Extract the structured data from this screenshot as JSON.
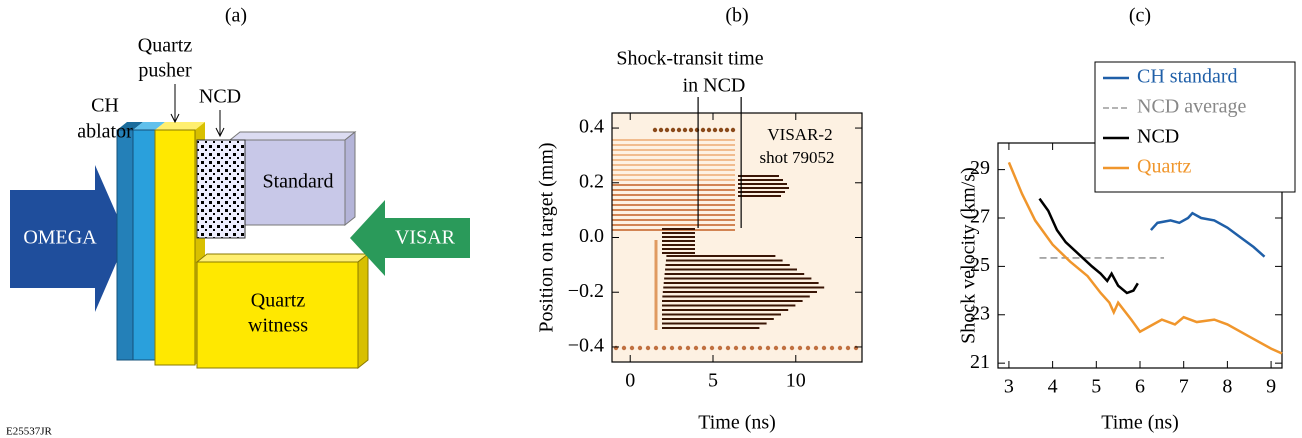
{
  "figure_id": "E25537JR",
  "diagram": {
    "panel_label": "(a)",
    "labels": {
      "ch_ablator": [
        "CH",
        "ablator"
      ],
      "quartz_pusher": [
        "Quartz",
        "pusher"
      ],
      "ncd": "NCD",
      "standard": "Standard",
      "omega": "OMEGA",
      "visar": "VISAR",
      "quartz_witness": [
        "Quartz",
        "witness"
      ]
    }
  },
  "chart_data": [
    {
      "type": "image",
      "panel_label": "(b)",
      "xlabel": "Time (ns)",
      "ylabel": "Position on target (mm)",
      "xlim": [
        -1.1,
        14
      ],
      "ylim": [
        -0.455,
        0.455
      ],
      "xticks": [
        0,
        5,
        10
      ],
      "yticks": [
        0.4,
        0.2,
        {
          "value": 0,
          "label": "0.0"
        },
        {
          "value": -0.2,
          "label": "−0.2"
        },
        {
          "value": -0.4,
          "label": "−0.4"
        }
      ],
      "annotation": [
        "Shock-transit time",
        "in NCD"
      ],
      "markers": [
        4.1,
        6.7
      ],
      "inset_text": [
        "VISAR-2",
        "shot 79052"
      ]
    },
    {
      "type": "line",
      "panel_label": "(c)",
      "xlabel": "Time (ns)",
      "ylabel": "Shock velocity (km/s)",
      "xlim": [
        2.75,
        9.25
      ],
      "ylim": [
        20.8,
        30.1
      ],
      "xticks": [
        3,
        4,
        5,
        6,
        7,
        8,
        9
      ],
      "yticks": [
        21,
        23,
        25,
        27,
        29
      ],
      "legend": "upper right",
      "series": [
        {
          "name": "CH standard",
          "color": "#1f5fa8",
          "dash": false,
          "x": [
            6.25,
            6.4,
            6.7,
            6.9,
            7.1,
            7.2,
            7.4,
            7.7,
            8.0,
            8.3,
            8.6,
            8.85
          ],
          "values": [
            26.5,
            26.8,
            26.9,
            26.8,
            27.0,
            27.2,
            27.0,
            26.9,
            26.6,
            26.2,
            25.8,
            25.4
          ]
        },
        {
          "name": "NCD average",
          "color": "#888888",
          "dash": true,
          "x": [
            3.7,
            6.55
          ],
          "values": [
            25.35,
            25.35
          ]
        },
        {
          "name": "NCD",
          "color": "#000000",
          "dash": false,
          "x": [
            3.7,
            3.9,
            4.1,
            4.3,
            4.6,
            4.9,
            5.1,
            5.25,
            5.35,
            5.5,
            5.7,
            5.85,
            5.95
          ],
          "values": [
            27.8,
            27.3,
            26.5,
            26.0,
            25.5,
            25.0,
            24.7,
            24.4,
            24.7,
            24.2,
            23.9,
            24.0,
            24.3
          ]
        },
        {
          "name": "Quartz",
          "color": "#f0962c",
          "dash": false,
          "x": [
            3.0,
            3.3,
            3.6,
            4.0,
            4.4,
            4.8,
            5.1,
            5.3,
            5.4,
            5.5,
            5.8,
            6.0,
            6.2,
            6.5,
            6.8,
            7.0,
            7.3,
            7.7,
            8.0,
            8.5,
            9.0,
            9.25
          ],
          "values": [
            29.3,
            28.0,
            26.9,
            25.9,
            25.2,
            24.6,
            23.9,
            23.5,
            23.1,
            23.5,
            22.8,
            22.3,
            22.5,
            22.8,
            22.6,
            22.9,
            22.7,
            22.8,
            22.6,
            22.1,
            21.6,
            21.4
          ]
        }
      ]
    }
  ]
}
